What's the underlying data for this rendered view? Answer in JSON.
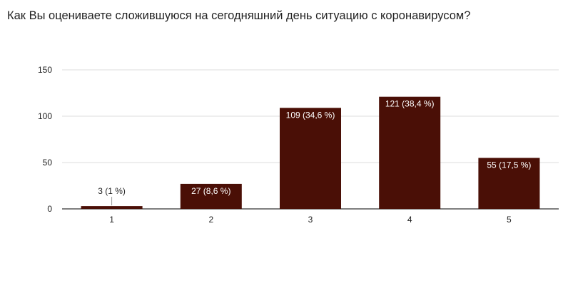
{
  "chart_data": {
    "type": "bar",
    "title": "Как Вы оцениваете сложившуюся на сегодняшний день ситуацию с коронавирусом?",
    "categories": [
      "1",
      "2",
      "3",
      "4",
      "5"
    ],
    "values": [
      3,
      27,
      109,
      121,
      55
    ],
    "data_labels": [
      "3 (1 %)",
      "27 (8,6 %)",
      "109 (34,6 %)",
      "121 (38,4 %)",
      "55 (17,5 %)"
    ],
    "yticks": [
      "0",
      "50",
      "100",
      "150"
    ],
    "ylim": [
      0,
      150
    ],
    "grid": true,
    "legend": "none",
    "bar_color": "#4a0f06",
    "label_color_inside": "#ffffff",
    "label_color_outside": "#222222"
  }
}
